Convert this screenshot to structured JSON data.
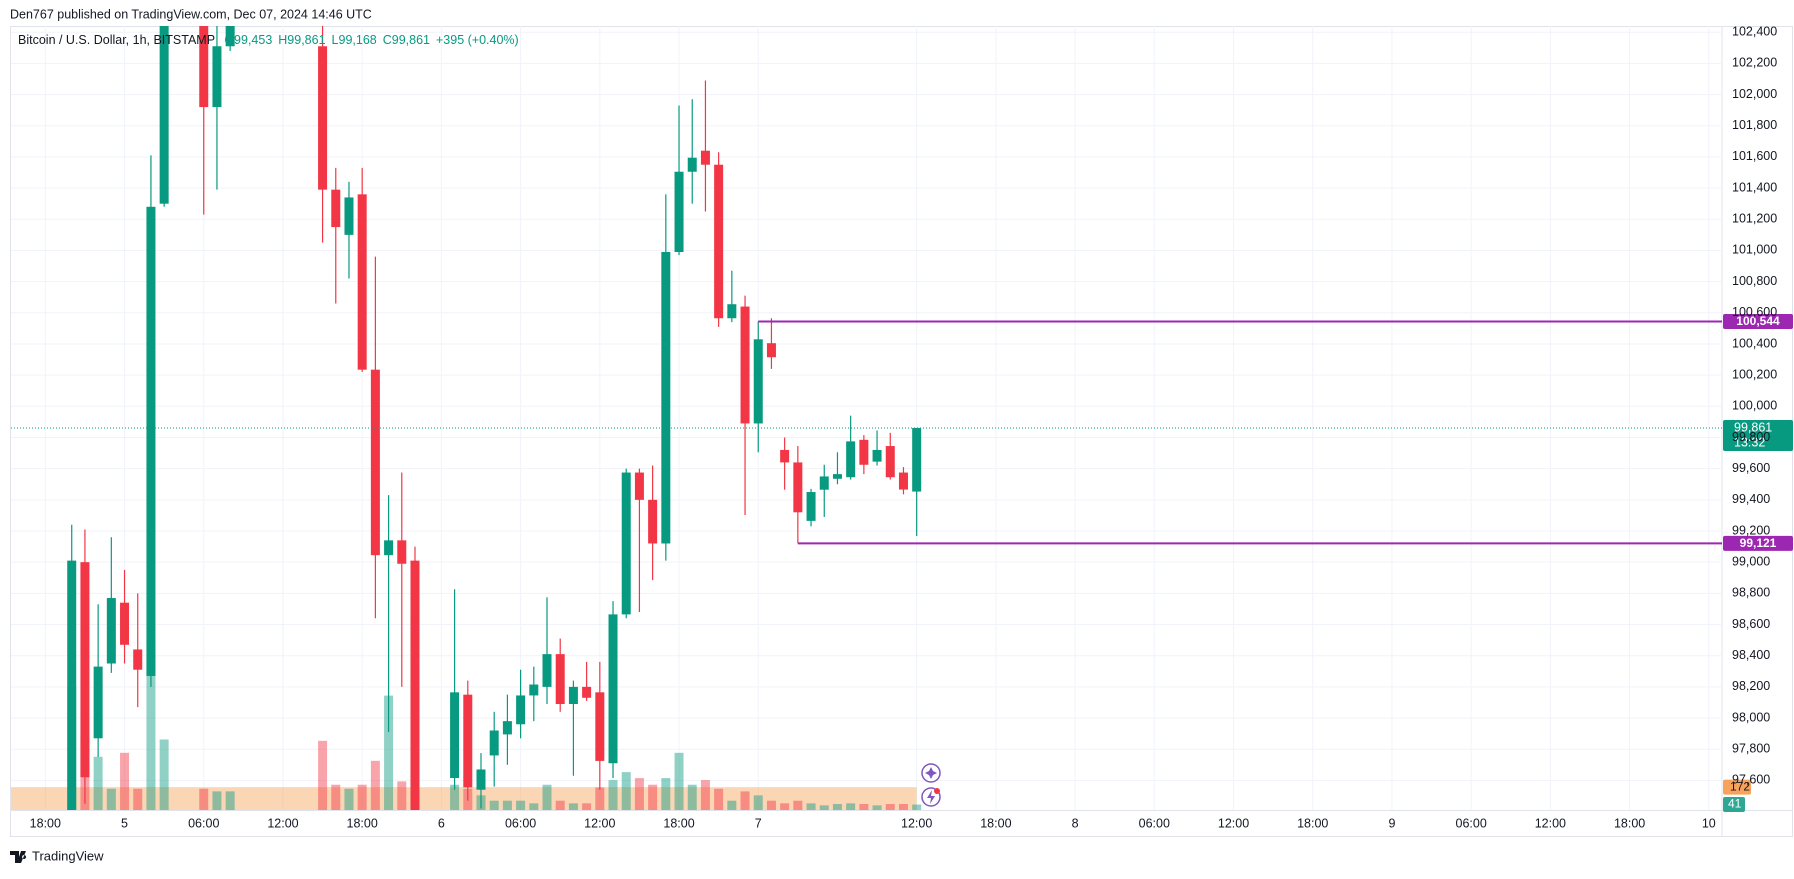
{
  "header": {
    "text": "Den767 published on TradingView.com, Dec 07, 2024 14:46 UTC"
  },
  "footer": {
    "brand": "TradingView"
  },
  "chart_data": {
    "type": "candlestick",
    "title": "Bitcoin / U.S. Dollar, 1h, BITSTAMP",
    "legend_values": [
      "O99,453",
      "H99,861",
      "L99,168",
      "C99,861",
      "+395 (+0.40%)"
    ],
    "up_color": "#089981",
    "down_color": "#f23645",
    "x": [
      2,
      3,
      4,
      5,
      6,
      7,
      8,
      9,
      12,
      13,
      14,
      21,
      22,
      23,
      24,
      25,
      26,
      27,
      28,
      31,
      32,
      33,
      34,
      35,
      36,
      37,
      38,
      39,
      40,
      41,
      42,
      43,
      44,
      45,
      46,
      47,
      48,
      49,
      50,
      51,
      52,
      53,
      54,
      55,
      56,
      57,
      58,
      59,
      60,
      61,
      62,
      63,
      64,
      65,
      66
    ],
    "open": [
      97400,
      99000,
      97870,
      98350,
      98740,
      98440,
      98270,
      101300,
      102500,
      101920,
      102310,
      102310,
      101390,
      101100,
      101360,
      100235,
      99045,
      99140,
      99010,
      97615,
      98150,
      97540,
      97760,
      97895,
      97960,
      98145,
      98200,
      98410,
      98090,
      98200,
      98165,
      97710,
      98665,
      99575,
      99400,
      99120,
      100990,
      101505,
      101640,
      101550,
      100565,
      100640,
      99890,
      100405,
      99720,
      99640,
      99265,
      99465,
      99535,
      99545,
      99785,
      99645,
      99745,
      99575,
      99453
    ],
    "high": [
      99240,
      99210,
      98730,
      99160,
      98950,
      98800,
      101610,
      102700,
      102600,
      102500,
      102600,
      102500,
      101530,
      101440,
      101530,
      100960,
      99430,
      99575,
      99100,
      98826,
      98240,
      97775,
      98040,
      98150,
      98310,
      98330,
      98775,
      98510,
      98240,
      98360,
      98360,
      98750,
      99600,
      99600,
      99620,
      101360,
      101930,
      101970,
      102090,
      101630,
      100870,
      100710,
      100544,
      100565,
      99800,
      99745,
      99470,
      99625,
      99705,
      99940,
      99815,
      99845,
      99830,
      99610,
      99861
    ],
    "low": [
      97300,
      97450,
      97750,
      98290,
      98350,
      98070,
      98200,
      101280,
      101230,
      101390,
      102280,
      101050,
      100660,
      100820,
      100220,
      98640,
      97910,
      98200,
      97300,
      97540,
      97470,
      97420,
      97560,
      97700,
      97870,
      97980,
      98090,
      98040,
      97630,
      98110,
      97540,
      97615,
      98640,
      98680,
      98885,
      99010,
      100970,
      101300,
      101250,
      100510,
      100540,
      99303,
      99705,
      100240,
      99465,
      99121,
      99230,
      99290,
      99500,
      99530,
      99565,
      99620,
      99530,
      99435,
      99168
    ],
    "close": [
      99010,
      97620,
      98330,
      98770,
      98470,
      98310,
      101280,
      102600,
      101920,
      102310,
      102450,
      101390,
      101150,
      101340,
      100235,
      99045,
      99140,
      98990,
      97400,
      98165,
      97555,
      97670,
      97920,
      97980,
      98145,
      98215,
      98410,
      98090,
      98200,
      98130,
      97725,
      98665,
      99575,
      99400,
      99120,
      100990,
      101505,
      101595,
      101550,
      100565,
      100655,
      99890,
      100430,
      100315,
      99640,
      99320,
      99450,
      99550,
      99565,
      99775,
      99625,
      99720,
      99545,
      99466,
      99861
    ],
    "volume": [
      930,
      540,
      400,
      160,
      430,
      160,
      1270,
      530,
      160,
      140,
      140,
      520,
      190,
      160,
      190,
      370,
      860,
      215,
      1460,
      190,
      160,
      110,
      70,
      70,
      70,
      50,
      190,
      70,
      50,
      50,
      170,
      225,
      285,
      240,
      190,
      240,
      430,
      190,
      225,
      160,
      70,
      140,
      110,
      70,
      50,
      70,
      50,
      35,
      45,
      50,
      45,
      35,
      45,
      45,
      41
    ],
    "volume_ma": {
      "value": 172,
      "color": "#f7a35c"
    },
    "xlim": [
      -2.6,
      127
    ],
    "xticks": [
      {
        "value": 0,
        "label": "18:00"
      },
      {
        "value": 6,
        "label": "5"
      },
      {
        "value": 12,
        "label": "06:00"
      },
      {
        "value": 18,
        "label": "12:00"
      },
      {
        "value": 24,
        "label": "18:00"
      },
      {
        "value": 30,
        "label": "6"
      },
      {
        "value": 36,
        "label": "06:00"
      },
      {
        "value": 42,
        "label": "12:00"
      },
      {
        "value": 48,
        "label": "18:00"
      },
      {
        "value": 54,
        "label": "7"
      },
      {
        "value": 66,
        "label": "12:00"
      },
      {
        "value": 72,
        "label": "18:00"
      },
      {
        "value": 78,
        "label": "8"
      },
      {
        "value": 84,
        "label": "06:00"
      },
      {
        "value": 90,
        "label": "12:00"
      },
      {
        "value": 96,
        "label": "18:00"
      },
      {
        "value": 102,
        "label": "9"
      },
      {
        "value": 108,
        "label": "06:00"
      },
      {
        "value": 114,
        "label": "12:00"
      },
      {
        "value": 120,
        "label": "18:00"
      },
      {
        "value": 126,
        "label": "10"
      }
    ],
    "ylim": [
      97410,
      102440
    ],
    "yticks": [
      {
        "value": 97600,
        "label": "97,600"
      },
      {
        "value": 97800,
        "label": "97,800"
      },
      {
        "value": 98000,
        "label": "98,000"
      },
      {
        "value": 98200,
        "label": "98,200"
      },
      {
        "value": 98400,
        "label": "98,400"
      },
      {
        "value": 98600,
        "label": "98,600"
      },
      {
        "value": 98800,
        "label": "98,800"
      },
      {
        "value": 99000,
        "label": "99,000"
      },
      {
        "value": 99200,
        "label": "99,200"
      },
      {
        "value": 99400,
        "label": "99,400"
      },
      {
        "value": 99600,
        "label": "99,600"
      },
      {
        "value": 99800,
        "label": "99,800"
      },
      {
        "value": 100000,
        "label": "100,000"
      },
      {
        "value": 100200,
        "label": "100,200"
      },
      {
        "value": 100400,
        "label": "100,400"
      },
      {
        "value": 100600,
        "label": "100,600"
      },
      {
        "value": 100800,
        "label": "100,800"
      },
      {
        "value": 101000,
        "label": "101,000"
      },
      {
        "value": 101200,
        "label": "101,200"
      },
      {
        "value": 101400,
        "label": "101,400"
      },
      {
        "value": 101600,
        "label": "101,600"
      },
      {
        "value": 101800,
        "label": "101,800"
      },
      {
        "value": 102000,
        "label": "102,000"
      },
      {
        "value": 102200,
        "label": "102,200"
      },
      {
        "value": 102400,
        "label": "102,400"
      }
    ],
    "grid": true,
    "price_lines": [
      {
        "value": 100544,
        "label": "100,544",
        "start": 54,
        "color": "#9c27b0"
      },
      {
        "value": 99121,
        "label": "99,121",
        "start": 57,
        "color": "#9c27b0"
      }
    ],
    "last_price": {
      "value": 99861,
      "label": "99,861",
      "countdown": "13:32",
      "color": "#089981"
    }
  }
}
